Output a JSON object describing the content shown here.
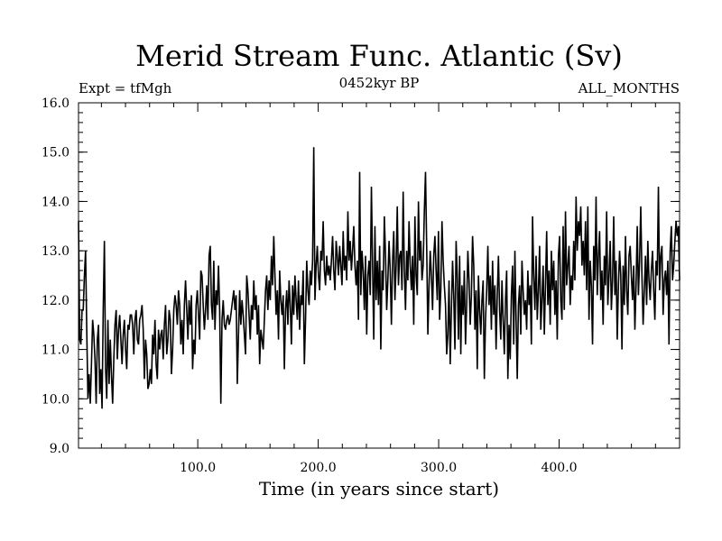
{
  "chart_data": {
    "type": "line",
    "title": "Merid Stream Func. Atlantic (Sv)",
    "left_label": "Expt = tfMgh",
    "center_label": "0452kyr BP",
    "right_label": "ALL_MONTHS",
    "xlabel": "Time (in years since start)",
    "ylabel": "",
    "xlim": [
      1,
      500
    ],
    "ylim": [
      9.0,
      16.0
    ],
    "x_ticks": [
      100,
      200,
      300,
      400
    ],
    "x_tick_labels": [
      "100.0",
      "200.0",
      "300.0",
      "400.0"
    ],
    "y_ticks": [
      9,
      10,
      11,
      12,
      13,
      14,
      15,
      16
    ],
    "y_tick_labels": [
      "9.0",
      "10.0",
      "11.0",
      "12.0",
      "13.0",
      "14.0",
      "15.0",
      "16.0"
    ],
    "grid": false,
    "series": [
      {
        "color": "#000000",
        "x_start": 1,
        "x_step": 1,
        "values": [
          13.6,
          11.2,
          11.1,
          11.8,
          11.8,
          12.5,
          13.0,
          11.4,
          10.0,
          10.5,
          9.9,
          10.7,
          11.6,
          11.3,
          10.8,
          9.9,
          11.2,
          11.5,
          10.1,
          10.6,
          9.8,
          11.8,
          13.2,
          10.6,
          10.0,
          11.6,
          10.3,
          11.2,
          10.5,
          9.9,
          10.8,
          11.5,
          11.8,
          10.8,
          11.4,
          11.7,
          11.2,
          10.7,
          11.3,
          11.6,
          11.0,
          10.6,
          11.5,
          11.4,
          11.7,
          11.7,
          11.5,
          10.9,
          11.6,
          11.8,
          11.2,
          11.1,
          11.6,
          11.7,
          11.9,
          11.4,
          10.4,
          11.2,
          10.9,
          10.2,
          10.3,
          10.6,
          10.3,
          11.3,
          10.9,
          11.6,
          10.7,
          10.4,
          11.4,
          11.0,
          11.3,
          11.4,
          10.8,
          11.5,
          11.9,
          10.9,
          11.2,
          11.8,
          11.6,
          10.5,
          11.0,
          11.8,
          12.1,
          11.9,
          11.5,
          12.2,
          11.9,
          11.1,
          11.6,
          10.9,
          11.9,
          12.4,
          11.8,
          11.2,
          12.0,
          11.5,
          12.1,
          10.6,
          11.2,
          10.9,
          11.9,
          12.2,
          11.7,
          11.2,
          12.6,
          12.5,
          11.9,
          11.4,
          11.8,
          12.3,
          11.6,
          12.9,
          13.1,
          11.9,
          11.6,
          12.8,
          11.4,
          12.2,
          11.9,
          12.7,
          11.8,
          9.9,
          11.6,
          12.0,
          11.5,
          11.4,
          11.6,
          11.7,
          11.5,
          11.6,
          11.8,
          12.0,
          12.2,
          11.8,
          12.1,
          10.3,
          11.3,
          12.2,
          11.5,
          12.0,
          11.7,
          11.3,
          10.9,
          12.5,
          12.2,
          11.7,
          11.2,
          11.9,
          11.6,
          12.4,
          11.8,
          12.1,
          11.3,
          11.9,
          10.7,
          11.4,
          11.2,
          11.0,
          11.6,
          12.2,
          12.5,
          11.8,
          12.4,
          12.0,
          12.9,
          12.3,
          13.3,
          12.5,
          11.7,
          12.2,
          11.2,
          12.6,
          12.0,
          11.7,
          12.1,
          10.6,
          11.8,
          12.2,
          11.5,
          12.4,
          11.9,
          11.1,
          12.3,
          11.7,
          12.5,
          12.0,
          11.6,
          12.4,
          11.4,
          12.1,
          11.9,
          12.6,
          10.7,
          11.6,
          12.8,
          12.2,
          11.9,
          12.6,
          12.3,
          12.8,
          15.1,
          12.0,
          12.7,
          13.1,
          12.5,
          12.2,
          13.0,
          12.8,
          13.6,
          12.6,
          12.3,
          12.9,
          12.5,
          12.7,
          12.4,
          12.8,
          13.3,
          12.6,
          12.2,
          13.2,
          12.9,
          12.5,
          13.1,
          12.7,
          12.3,
          13.4,
          12.6,
          12.9,
          12.4,
          13.8,
          12.8,
          13.2,
          12.6,
          13.0,
          13.5,
          12.7,
          12.3,
          12.8,
          11.6,
          14.6,
          12.1,
          13.0,
          12.6,
          11.8,
          12.9,
          11.3,
          12.5,
          12.8,
          12.1,
          14.3,
          12.7,
          11.2,
          13.5,
          12.0,
          12.8,
          11.9,
          13.1,
          11.0,
          12.6,
          12.2,
          13.7,
          12.9,
          11.8,
          12.4,
          13.2,
          12.6,
          11.5,
          12.8,
          13.4,
          12.0,
          12.7,
          13.9,
          12.3,
          12.9,
          13.0,
          12.2,
          14.2,
          12.6,
          11.8,
          13.0,
          12.4,
          13.6,
          12.7,
          12.2,
          12.9,
          11.5,
          13.7,
          12.5,
          12.1,
          14.0,
          12.8,
          13.2,
          12.4,
          12.7,
          13.8,
          14.6,
          13.1,
          11.3,
          12.3,
          13.0,
          12.5,
          11.8,
          12.9,
          13.3,
          12.6,
          12.0,
          13.4,
          11.6,
          12.2,
          13.6,
          12.8,
          12.3,
          11.9,
          10.9,
          11.3,
          12.4,
          10.7,
          11.8,
          12.8,
          12.1,
          11.0,
          13.2,
          12.5,
          11.2,
          12.9,
          10.9,
          12.3,
          11.7,
          12.6,
          11.1,
          11.9,
          13.0,
          12.4,
          11.5,
          12.1,
          13.3,
          12.7,
          11.4,
          12.2,
          10.6,
          12.5,
          11.8,
          11.3,
          12.0,
          12.4,
          10.4,
          11.6,
          12.2,
          13.1,
          11.9,
          12.5,
          11.4,
          12.8,
          11.7,
          12.3,
          11.0,
          12.1,
          12.9,
          11.8,
          11.2,
          12.4,
          11.6,
          10.9,
          12.0,
          12.6,
          10.4,
          11.5,
          10.8,
          12.1,
          12.7,
          11.1,
          13.0,
          11.6,
          10.4,
          11.9,
          12.3,
          11.3,
          12.8,
          12.2,
          11.7,
          12.0,
          11.4,
          12.6,
          11.9,
          12.3,
          11.1,
          13.7,
          12.5,
          11.8,
          12.9,
          11.6,
          12.2,
          13.1,
          11.4,
          12.0,
          12.7,
          11.3,
          12.3,
          13.4,
          11.9,
          12.6,
          11.5,
          13.0,
          12.2,
          12.8,
          11.7,
          12.4,
          11.2,
          12.9,
          13.3,
          12.0,
          11.6,
          13.5,
          11.8,
          13.8,
          12.3,
          12.7,
          13.1,
          11.9,
          12.5,
          12.2,
          13.2,
          12.4,
          14.1,
          13.0,
          13.6,
          13.3,
          13.9,
          12.7,
          13.2,
          12.5,
          13.6,
          12.2,
          13.9,
          11.6,
          12.8,
          12.3,
          11.1,
          13.1,
          12.4,
          14.1,
          12.1,
          12.9,
          13.4,
          12.0,
          12.6,
          11.5,
          12.9,
          12.3,
          13.8,
          11.9,
          12.5,
          13.2,
          11.8,
          12.4,
          13.7,
          12.1,
          12.8,
          11.2,
          12.3,
          13.0,
          12.5,
          11.0,
          12.7,
          11.9,
          13.3,
          12.2,
          11.7,
          12.9,
          13.1,
          12.5,
          12.0,
          12.7,
          11.4,
          12.3,
          13.5,
          12.1,
          12.8,
          13.9,
          12.5,
          11.5,
          12.2,
          12.9,
          11.9,
          13.2,
          12.4,
          12.0,
          12.6,
          13.0,
          12.2,
          11.6,
          12.8,
          12.5,
          14.3,
          12.2,
          12.9,
          13.1,
          11.7,
          12.4,
          12.6,
          12.1,
          12.8,
          11.1,
          13.0,
          13.5,
          12.4,
          12.7,
          13.2,
          13.6,
          13.3,
          13.5,
          12.4
        ]
      }
    ]
  }
}
